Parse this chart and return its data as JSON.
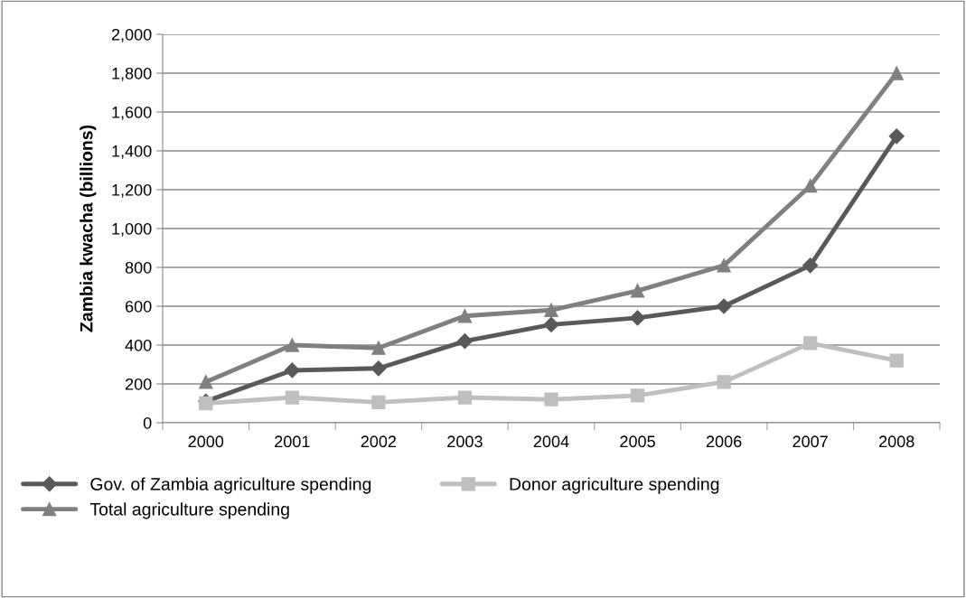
{
  "chart_data": {
    "type": "line",
    "ylabel": "Zambia kwacha (billions)",
    "categories": [
      "2000",
      "2001",
      "2002",
      "2003",
      "2004",
      "2005",
      "2006",
      "2007",
      "2008"
    ],
    "series": [
      {
        "name": "Gov. of Zambia agriculture spending",
        "color": "#595959",
        "marker": "diamond",
        "values": [
          110,
          270,
          280,
          420,
          505,
          540,
          600,
          810,
          1475
        ]
      },
      {
        "name": "Donor agriculture spending",
        "color": "#bfbfbf",
        "marker": "square",
        "values": [
          100,
          130,
          105,
          130,
          120,
          140,
          210,
          410,
          320
        ]
      },
      {
        "name": "Total agriculture spending",
        "color": "#808080",
        "marker": "triangle",
        "values": [
          210,
          400,
          385,
          550,
          580,
          680,
          810,
          1220,
          1800
        ]
      }
    ],
    "ylim": [
      0,
      2000
    ],
    "yticks": [
      {
        "value": 0,
        "label": "0"
      },
      {
        "value": 200,
        "label": "200"
      },
      {
        "value": 400,
        "label": "400"
      },
      {
        "value": 600,
        "label": "600"
      },
      {
        "value": 800,
        "label": "800"
      },
      {
        "value": 1000,
        "label": "1,000"
      },
      {
        "value": 1200,
        "label": "1,200"
      },
      {
        "value": 1400,
        "label": "1,400"
      },
      {
        "value": 1600,
        "label": "1,600"
      },
      {
        "value": 1800,
        "label": "1,800"
      },
      {
        "value": 2000,
        "label": "2,000"
      }
    ],
    "grid": "y",
    "legend": "bottom",
    "line_style": "solid"
  }
}
